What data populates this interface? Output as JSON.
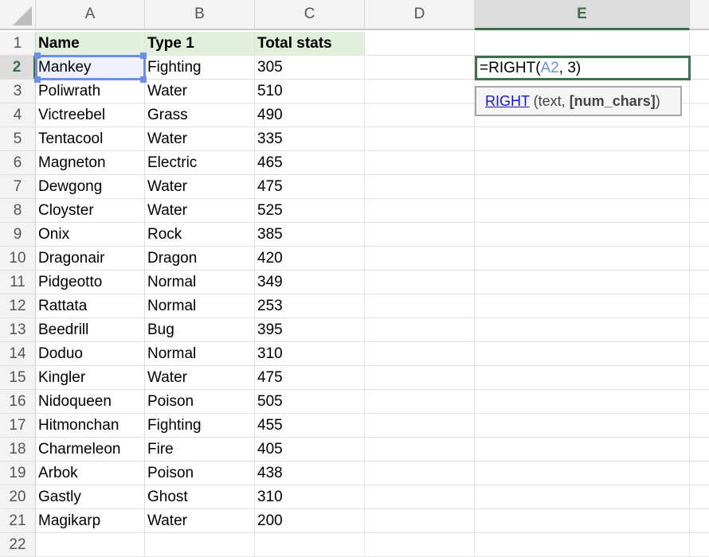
{
  "columns": [
    "A",
    "B",
    "C",
    "D",
    "E"
  ],
  "selected_column": "E",
  "active_row": 2,
  "rows": [
    [
      "Name",
      "Type 1",
      "Total stats"
    ],
    [
      "Mankey",
      "Fighting",
      "305"
    ],
    [
      "Poliwrath",
      "Water",
      "510"
    ],
    [
      "Victreebel",
      "Grass",
      "490"
    ],
    [
      "Tentacool",
      "Water",
      "335"
    ],
    [
      "Magneton",
      "Electric",
      "465"
    ],
    [
      "Dewgong",
      "Water",
      "475"
    ],
    [
      "Cloyster",
      "Water",
      "525"
    ],
    [
      "Onix",
      "Rock",
      "385"
    ],
    [
      "Dragonair",
      "Dragon",
      "420"
    ],
    [
      "Pidgeotto",
      "Normal",
      "349"
    ],
    [
      "Rattata",
      "Normal",
      "253"
    ],
    [
      "Beedrill",
      "Bug",
      "395"
    ],
    [
      "Doduo",
      "Normal",
      "310"
    ],
    [
      "Kingler",
      "Water",
      "475"
    ],
    [
      "Nidoqueen",
      "Poison",
      "505"
    ],
    [
      "Hitmonchan",
      "Fighting",
      "455"
    ],
    [
      "Charmeleon",
      "Fire",
      "405"
    ],
    [
      "Arbok",
      "Poison",
      "438"
    ],
    [
      "Gastly",
      "Ghost",
      "310"
    ],
    [
      "Magikarp",
      "Water",
      "200"
    ],
    [
      "",
      "",
      ""
    ]
  ],
  "formula": {
    "prefix": "=RIGHT(",
    "ref": "A2",
    "suffix": ", 3)"
  },
  "tooltip": {
    "func": "RIGHT",
    "open": " (text, ",
    "arg": "[num_chars]",
    "close": ")"
  },
  "colors": {
    "accent": "#3c7149",
    "ref": "#6c8ee6",
    "header_fill": "#e2efda"
  }
}
